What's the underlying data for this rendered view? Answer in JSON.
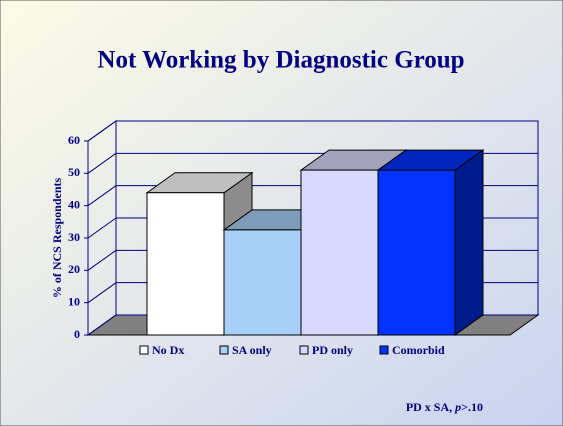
{
  "chart_data": {
    "type": "bar3d",
    "title": "Not Working by Diagnostic Group",
    "y_axis_label": "% of NCS Respondents",
    "series": [
      {
        "name": "No Dx",
        "color": "#ffffff",
        "values": [
          44
        ]
      },
      {
        "name": "SA only",
        "color": "#a6d0f8",
        "values": [
          32.5
        ]
      },
      {
        "name": "PD only",
        "color": "#d8d8fc",
        "values": [
          51
        ]
      },
      {
        "name": "Comorbid",
        "color": "#0033ff",
        "values": [
          51
        ]
      }
    ],
    "ylim": [
      0,
      60
    ],
    "yticks": [
      0,
      10,
      20,
      30,
      40,
      50,
      60
    ],
    "grid": true,
    "annotation": [
      "PD x SA, ",
      "p",
      ">.10"
    ]
  }
}
